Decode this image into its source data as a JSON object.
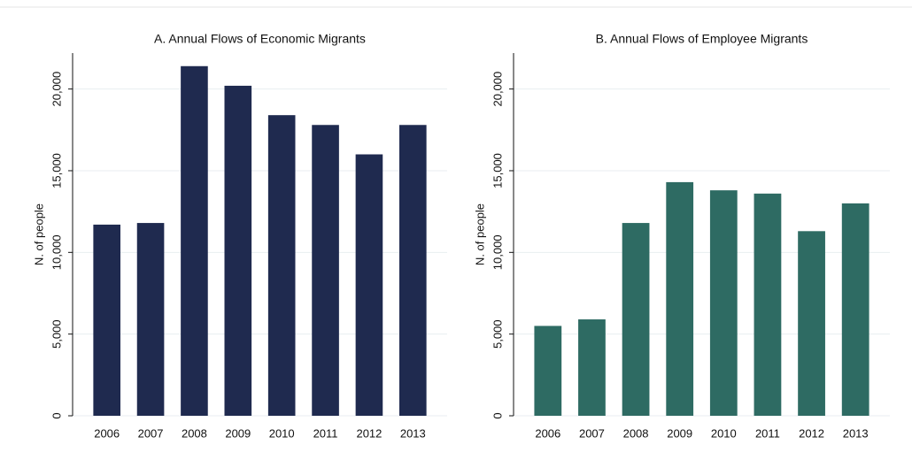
{
  "chart_data": [
    {
      "type": "bar",
      "title": "A. Annual Flows of Economic Migrants",
      "ylabel": "N. of people",
      "categories": [
        "2006",
        "2007",
        "2008",
        "2009",
        "2010",
        "2011",
        "2012",
        "2013"
      ],
      "values": [
        11700,
        11800,
        21400,
        20200,
        18400,
        17800,
        16000,
        17800
      ],
      "color": "#1f2a4f",
      "ylim": [
        0,
        22200
      ],
      "yticks": [
        0,
        {
          "value": 5000,
          "label": "5,000"
        },
        {
          "value": 10000,
          "label": "10,000"
        },
        {
          "value": 15000,
          "label": "15,000"
        },
        {
          "value": 20000,
          "label": "20,000"
        }
      ],
      "grid": true
    },
    {
      "type": "bar",
      "title": "B. Annual Flows of Employee Migrants",
      "ylabel": "N. of people",
      "categories": [
        "2006",
        "2007",
        "2008",
        "2009",
        "2010",
        "2011",
        "2012",
        "2013"
      ],
      "values": [
        5500,
        5900,
        11800,
        14300,
        13800,
        13600,
        11300,
        13000
      ],
      "color": "#2e6b63",
      "ylim": [
        0,
        22200
      ],
      "yticks": [
        0,
        {
          "value": 5000,
          "label": "5,000"
        },
        {
          "value": 10000,
          "label": "10,000"
        },
        {
          "value": 15000,
          "label": "15,000"
        },
        {
          "value": 20000,
          "label": "20,000"
        }
      ],
      "grid": true
    }
  ]
}
